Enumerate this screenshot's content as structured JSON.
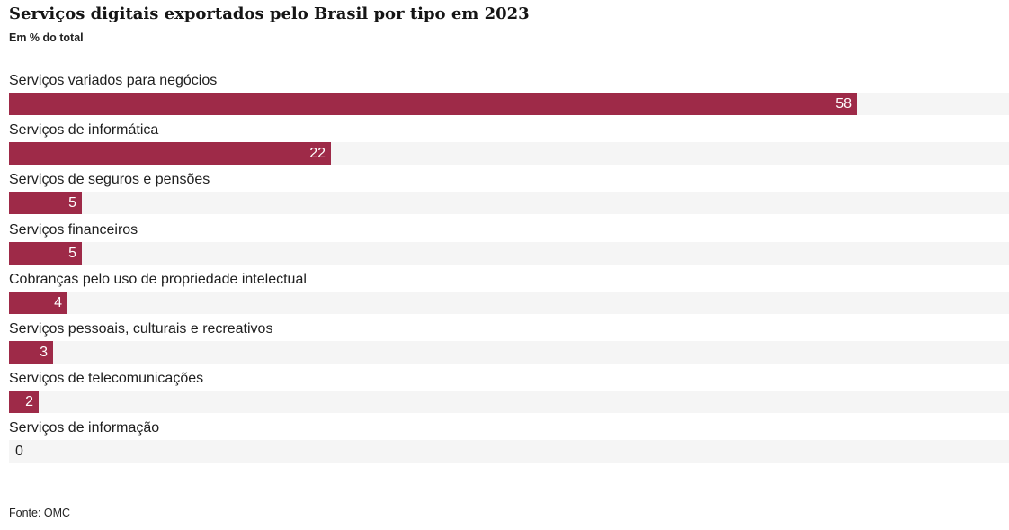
{
  "chart_data": {
    "type": "bar",
    "orientation": "horizontal",
    "title": "Serviços digitais exportados pelo Brasil por tipo em 2023",
    "subtitle": "Em % do total",
    "categories": [
      "Serviços variados para negócios",
      "Serviços de informática",
      "Serviços de seguros e pensões",
      "Serviços financeiros",
      "Cobranças pelo uso de propriedade intelectual",
      "Serviços pessoais, culturais e recreativos",
      "Serviços de telecomunicações",
      "Serviços de informação"
    ],
    "values": [
      58,
      22,
      5,
      5,
      4,
      3,
      2,
      0
    ],
    "value_labels": [
      "58",
      "22",
      "5",
      "5",
      "4",
      "3",
      "2",
      "0"
    ],
    "xlim": [
      0,
      68.4
    ],
    "xlabel": "",
    "ylabel": "",
    "grid": false,
    "legend": "none",
    "colors": {
      "bar": "#9e2a48",
      "track": "#f5f5f5",
      "label_inside": "#ffffff",
      "label_outside": "#1e1e1e"
    }
  },
  "source": "Fonte: OMC"
}
